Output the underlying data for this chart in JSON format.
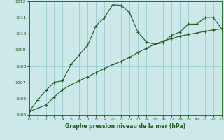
{
  "title": "Graphe pression niveau de la mer (hPa)",
  "bg_color": "#cce8e8",
  "grid_color": "#99cccc",
  "line_color": "#1a5c1a",
  "series1": {
    "x": [
      0,
      1,
      2,
      3,
      4,
      5,
      6,
      7,
      8,
      9,
      10,
      11,
      12,
      13,
      14,
      15,
      16,
      17,
      18,
      19,
      20,
      21,
      22,
      23
    ],
    "y": [
      1005.2,
      1005.9,
      1006.5,
      1007.0,
      1007.1,
      1008.1,
      1008.7,
      1009.3,
      1010.5,
      1011.0,
      1011.8,
      1011.75,
      1011.3,
      1010.1,
      1009.5,
      1009.35,
      1009.45,
      1009.9,
      1010.1,
      1010.6,
      1010.6,
      1011.0,
      1011.0,
      1010.3
    ]
  },
  "series2": {
    "x": [
      0,
      1,
      2,
      3,
      4,
      5,
      6,
      7,
      8,
      9,
      10,
      11,
      12,
      13,
      14,
      15,
      16,
      17,
      18,
      19,
      20,
      21,
      22,
      23
    ],
    "y": [
      1005.2,
      1005.4,
      1005.6,
      1006.1,
      1006.55,
      1006.85,
      1007.1,
      1007.35,
      1007.6,
      1007.85,
      1008.1,
      1008.3,
      1008.55,
      1008.85,
      1009.1,
      1009.35,
      1009.55,
      1009.7,
      1009.85,
      1009.95,
      1010.05,
      1010.15,
      1010.25,
      1010.3
    ]
  },
  "ylim": [
    1005,
    1012
  ],
  "xlim": [
    0,
    23
  ],
  "yticks": [
    1005,
    1006,
    1007,
    1008,
    1009,
    1010,
    1011,
    1012
  ],
  "xticks": [
    0,
    1,
    2,
    3,
    4,
    5,
    6,
    7,
    8,
    9,
    10,
    11,
    12,
    13,
    14,
    15,
    16,
    17,
    18,
    19,
    20,
    21,
    22,
    23
  ],
  "ylabel_fontsize": 5,
  "xlabel_fontsize": 5.5,
  "tick_labelsize": 4.5,
  "linewidth": 0.8,
  "markersize": 3,
  "markeredgewidth": 0.8
}
